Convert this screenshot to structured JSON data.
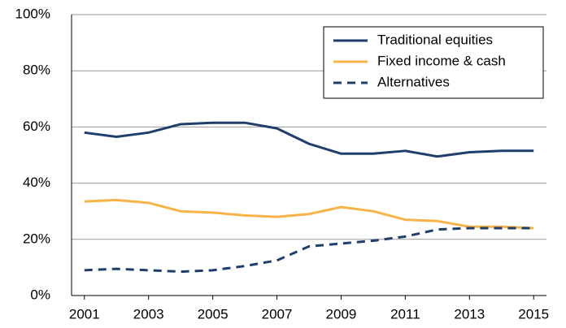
{
  "chart_data": {
    "type": "line",
    "x": [
      2001,
      2002,
      2003,
      2004,
      2005,
      2006,
      2007,
      2008,
      2009,
      2010,
      2011,
      2012,
      2013,
      2014,
      2015
    ],
    "series": [
      {
        "name": "Traditional equities",
        "color": "#1f3e6b",
        "style": "solid",
        "values": [
          58,
          56.5,
          58,
          61,
          61.5,
          61.5,
          59.5,
          54,
          50.5,
          50.5,
          51.5,
          49.5,
          51,
          51.5,
          51.5
        ]
      },
      {
        "name": "Fixed income & cash",
        "color": "#f7b347",
        "style": "solid",
        "values": [
          33.5,
          34,
          33,
          30,
          29.5,
          28.5,
          28,
          29,
          31.5,
          30,
          27,
          26.5,
          24.5,
          24.5,
          24
        ]
      },
      {
        "name": "Alternatives",
        "color": "#1f3e6b",
        "style": "dashed",
        "values": [
          9,
          9.5,
          9,
          8.5,
          9,
          10.5,
          12.5,
          17.5,
          18.5,
          19.5,
          21,
          23.5,
          24,
          24,
          24
        ]
      }
    ],
    "xlim": [
      2000.6,
      2015.4
    ],
    "xticks": [
      2001,
      2003,
      2005,
      2007,
      2009,
      2011,
      2013,
      2015
    ],
    "ylim": [
      0,
      100
    ],
    "yticks": [
      {
        "value": 0,
        "label": "0%"
      },
      {
        "value": 20,
        "label": "20%"
      },
      {
        "value": 40,
        "label": "40%"
      },
      {
        "value": 60,
        "label": "60%"
      },
      {
        "value": 80,
        "label": "80%"
      },
      {
        "value": 100,
        "label": "100%"
      }
    ],
    "grid": true,
    "legend": "upper right"
  }
}
